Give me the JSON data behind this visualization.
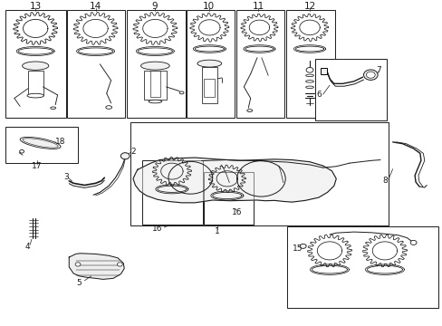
{
  "bg_color": "#ffffff",
  "line_color": "#1a1a1a",
  "fig_width": 4.89,
  "fig_height": 3.6,
  "dpi": 100,
  "boxes": {
    "13": [
      0.01,
      0.028,
      0.148,
      0.36
    ],
    "14": [
      0.151,
      0.028,
      0.282,
      0.36
    ],
    "9": [
      0.285,
      0.028,
      0.418,
      0.36
    ],
    "10": [
      0.421,
      0.028,
      0.53,
      0.36
    ],
    "11": [
      0.533,
      0.028,
      0.643,
      0.36
    ],
    "12": [
      0.646,
      0.028,
      0.758,
      0.36
    ],
    "67": [
      0.712,
      0.18,
      0.875,
      0.368
    ],
    "17": [
      0.01,
      0.388,
      0.175,
      0.5
    ],
    "1": [
      0.293,
      0.375,
      0.878,
      0.692
    ],
    "16a": [
      0.32,
      0.49,
      0.458,
      0.688
    ],
    "16b": [
      0.46,
      0.528,
      0.572,
      0.688
    ],
    "15": [
      0.648,
      0.694,
      0.992,
      0.946
    ]
  },
  "top_labels": {
    "13": 0.079,
    "14": 0.215,
    "9": 0.349,
    "10": 0.472,
    "11": 0.584,
    "12": 0.7
  }
}
